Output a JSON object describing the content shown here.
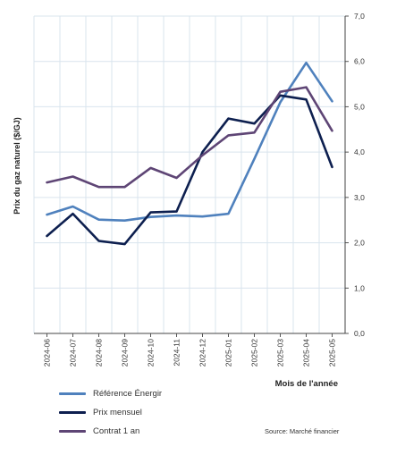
{
  "chart_data": {
    "type": "line",
    "categories": [
      "2024-06",
      "2024-07",
      "2024-08",
      "2024-09",
      "2024-10",
      "2024-11",
      "2024-12",
      "2025-01",
      "2025-02",
      "2025-03",
      "2025-04",
      "2025-05"
    ],
    "series": [
      {
        "name": "Référence Énergir",
        "color": "#4f81bd",
        "values": [
          2.62,
          2.8,
          2.51,
          2.49,
          2.57,
          2.6,
          2.58,
          2.64,
          3.85,
          5.1,
          5.97,
          5.12
        ]
      },
      {
        "name": "Prix mensuel",
        "color": "#0d1f4f",
        "values": [
          2.15,
          2.64,
          2.04,
          1.97,
          2.67,
          2.69,
          4.0,
          4.74,
          4.63,
          5.25,
          5.16,
          3.67
        ]
      },
      {
        "name": "Contrat 1 an",
        "color": "#5e4575",
        "values": [
          3.33,
          3.46,
          3.23,
          3.23,
          3.65,
          3.43,
          3.93,
          4.37,
          4.43,
          5.33,
          5.43,
          4.47
        ]
      }
    ],
    "ylabel": "Prix du gaz naturel ($/GJ)",
    "xlabel": "Mois de l'année",
    "ylim": [
      0,
      7
    ],
    "yticks": [
      "0,0",
      "1,0",
      "2,0",
      "3,0",
      "4,0",
      "5,0",
      "6,0",
      "7,0"
    ],
    "grid": true,
    "y_axis_side": "right",
    "legend_position": "bottom-left",
    "source": "Source: Marché financier"
  }
}
